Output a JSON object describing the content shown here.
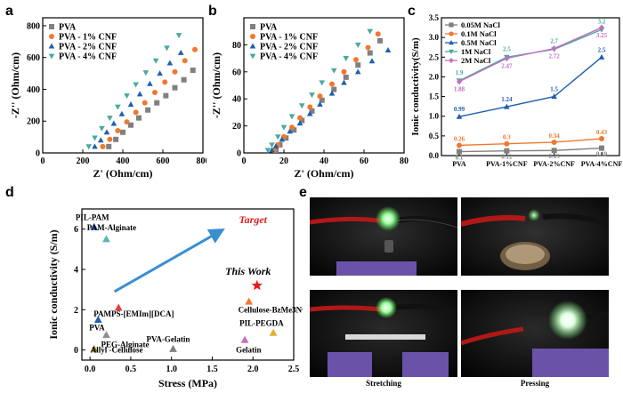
{
  "panels": {
    "a": "a",
    "b": "b",
    "c": "c",
    "d": "d",
    "e": "e"
  },
  "chart_data": [
    {
      "panel": "a",
      "type": "scatter",
      "xlabel": "Z' (Ohm/cm)",
      "ylabel": "-Z'' (Ohm/cm)",
      "xlim": [
        0,
        800
      ],
      "ylim": [
        0,
        850
      ],
      "xticks": [
        0,
        200,
        400,
        600,
        800
      ],
      "yticks": [
        0,
        200,
        400,
        600,
        800
      ],
      "legend_position": "top-left",
      "series": [
        {
          "name": "PVA",
          "color": "#808080",
          "marker": "square",
          "x": [
            330,
            365,
            400,
            440,
            480,
            525,
            570,
            615,
            660,
            705,
            750
          ],
          "y": [
            40,
            85,
            130,
            175,
            220,
            270,
            315,
            360,
            410,
            460,
            520
          ]
        },
        {
          "name": "PVA - 1% CNF",
          "color": "#f07830",
          "marker": "circle",
          "x": [
            300,
            335,
            375,
            420,
            465,
            510,
            560,
            610,
            660,
            710,
            760
          ],
          "y": [
            40,
            85,
            140,
            195,
            255,
            315,
            380,
            445,
            510,
            580,
            650
          ]
        },
        {
          "name": "PVA - 2% CNF",
          "color": "#1f5fb0",
          "marker": "triangle-up",
          "x": [
            260,
            290,
            320,
            355,
            395,
            440,
            485,
            535,
            585,
            635,
            690
          ],
          "y": [
            40,
            80,
            130,
            185,
            245,
            305,
            370,
            435,
            500,
            565,
            630
          ]
        },
        {
          "name": "PVA - 4% CNF",
          "color": "#4aa8a0",
          "marker": "triangle-down",
          "x": [
            230,
            260,
            295,
            335,
            375,
            420,
            465,
            515,
            565,
            620,
            680
          ],
          "y": [
            40,
            95,
            155,
            220,
            290,
            360,
            430,
            505,
            580,
            660,
            740
          ]
        }
      ]
    },
    {
      "panel": "b",
      "type": "scatter",
      "xlabel": "Z' (Ohm/cm)",
      "ylabel": "-Z'' (Ohm/cm)",
      "xlim": [
        0,
        80
      ],
      "ylim": [
        0,
        100
      ],
      "xticks": [
        0,
        20,
        40,
        60,
        80
      ],
      "yticks": [
        0,
        20,
        40,
        60,
        80
      ],
      "legend_position": "top-left",
      "series": [
        {
          "name": "PVA",
          "color": "#808080",
          "marker": "square",
          "x": [
            16,
            18,
            21,
            25,
            29,
            34,
            39,
            45,
            51,
            57,
            63,
            68
          ],
          "y": [
            2,
            6,
            11,
            17,
            24,
            31,
            39,
            47,
            56,
            65,
            74,
            83
          ]
        },
        {
          "name": "PVA - 1% CNF",
          "color": "#f07830",
          "marker": "circle",
          "x": [
            15,
            17,
            20,
            24,
            28,
            33,
            38,
            44,
            50,
            56,
            62,
            67
          ],
          "y": [
            2,
            6,
            12,
            19,
            26,
            34,
            42,
            51,
            60,
            69,
            78,
            88
          ]
        },
        {
          "name": "PVA - 2% CNF",
          "color": "#1f5fb0",
          "marker": "triangle-up",
          "x": [
            14,
            16,
            19,
            23,
            28,
            33,
            38,
            44,
            50,
            57,
            64,
            72
          ],
          "y": [
            2,
            5,
            10,
            16,
            22,
            29,
            36,
            44,
            52,
            60,
            68,
            76
          ]
        },
        {
          "name": "PVA - 4% CNF",
          "color": "#4aa8a0",
          "marker": "triangle-down",
          "x": [
            12,
            14,
            17,
            20,
            24,
            29,
            34,
            39,
            45,
            51,
            57,
            63
          ],
          "y": [
            2,
            6,
            12,
            19,
            27,
            35,
            43,
            52,
            61,
            70,
            80,
            90
          ]
        }
      ]
    },
    {
      "panel": "c",
      "type": "line",
      "xlabel": "",
      "ylabel": "Ionic conductivity(S/m)",
      "categories": [
        "PVA",
        "PVA-1%CNF",
        "PVA-2%CNF",
        "PVA-4%CNF"
      ],
      "ylim": [
        0.0,
        3.5
      ],
      "yticks": [
        "0.0",
        "0.5",
        "1.0",
        "1.5",
        "2.0",
        "2.5",
        "3.0",
        "3.5"
      ],
      "legend_position": "top-left",
      "series": [
        {
          "name": "0.05M NaCl",
          "color": "#808080",
          "marker": "square",
          "values": [
            0.1,
            0.12,
            0.13,
            0.19
          ],
          "labels": [
            "0.1",
            "0.12",
            "0.13",
            "0.19"
          ]
        },
        {
          "name": "0.1M NaCl",
          "color": "#f07830",
          "marker": "circle",
          "values": [
            0.26,
            0.3,
            0.34,
            0.43
          ],
          "labels": [
            "0.26",
            "0.3",
            "0.34",
            "0.43"
          ]
        },
        {
          "name": "0.5M NaCl",
          "color": "#1f5fb0",
          "marker": "triangle-up",
          "values": [
            0.99,
            1.24,
            1.5,
            2.5
          ],
          "labels": [
            "0.99",
            "1.24",
            "1.5",
            "2.5"
          ]
        },
        {
          "name": "1M NaCl",
          "color": "#4aa8a0",
          "marker": "triangle-down",
          "values": [
            1.9,
            2.5,
            2.7,
            3.2
          ],
          "labels": [
            "1.9",
            "2.5",
            "2.7",
            "3.2"
          ]
        },
        {
          "name": "2M NaCl",
          "color": "#c070c0",
          "marker": "diamond",
          "values": [
            1.88,
            2.47,
            2.72,
            3.25
          ],
          "labels": [
            "1.88",
            "2.47",
            "2.72",
            "3.25"
          ]
        }
      ]
    },
    {
      "panel": "d",
      "type": "scatter",
      "xlabel": "Stress (MPa)",
      "ylabel": "Ionic conductivity (S/m)",
      "xlim": [
        -0.1,
        2.5
      ],
      "ylim": [
        -0.5,
        7
      ],
      "xticks": [
        "0.0",
        "0.5",
        "1.0",
        "1.5",
        "2.0",
        "2.5"
      ],
      "yticks": [
        "0",
        "2",
        "4",
        "6"
      ],
      "annotation_target": "Target",
      "points": [
        {
          "name": "PIL-PAM",
          "x": 0.05,
          "y": 6.1,
          "color": "#1f5fb0",
          "marker": "triangle-up"
        },
        {
          "name": "PAM-Alginate",
          "x": 0.2,
          "y": 5.5,
          "color": "#5ab8b0",
          "marker": "triangle-up"
        },
        {
          "name": "This Work",
          "x": 2.05,
          "y": 3.2,
          "color": "#e02020",
          "marker": "star"
        },
        {
          "name": "Cellulose-BzMe3NOH",
          "x": 1.95,
          "y": 2.4,
          "color": "#f07830",
          "marker": "triangle-up"
        },
        {
          "name": "PAMPS-[EMIm][DCA]",
          "x": 0.35,
          "y": 2.1,
          "color": "#e04040",
          "marker": "triangle-up"
        },
        {
          "name": "PVA",
          "x": 0.1,
          "y": 1.5,
          "color": "#1f5fb0",
          "marker": "triangle-up"
        },
        {
          "name": "PIL-PEGDA",
          "x": 2.25,
          "y": 0.85,
          "color": "#e0b030",
          "marker": "triangle-up"
        },
        {
          "name": "PEG-Alginate",
          "x": 0.2,
          "y": 0.75,
          "color": "#909090",
          "marker": "triangle-up"
        },
        {
          "name": "Gelatin",
          "x": 1.9,
          "y": 0.5,
          "color": "#c070c0",
          "marker": "triangle-up"
        },
        {
          "name": "PVA-Gelatin",
          "x": 1.02,
          "y": 0.05,
          "color": "#808080",
          "marker": "triangle-up"
        },
        {
          "name": "Allyl -Cellulose",
          "x": 0.05,
          "y": 0.05,
          "color": "#a08040",
          "marker": "triangle-up"
        }
      ]
    }
  ],
  "photos": {
    "captions": [
      "Stretching",
      "Pressing"
    ]
  }
}
